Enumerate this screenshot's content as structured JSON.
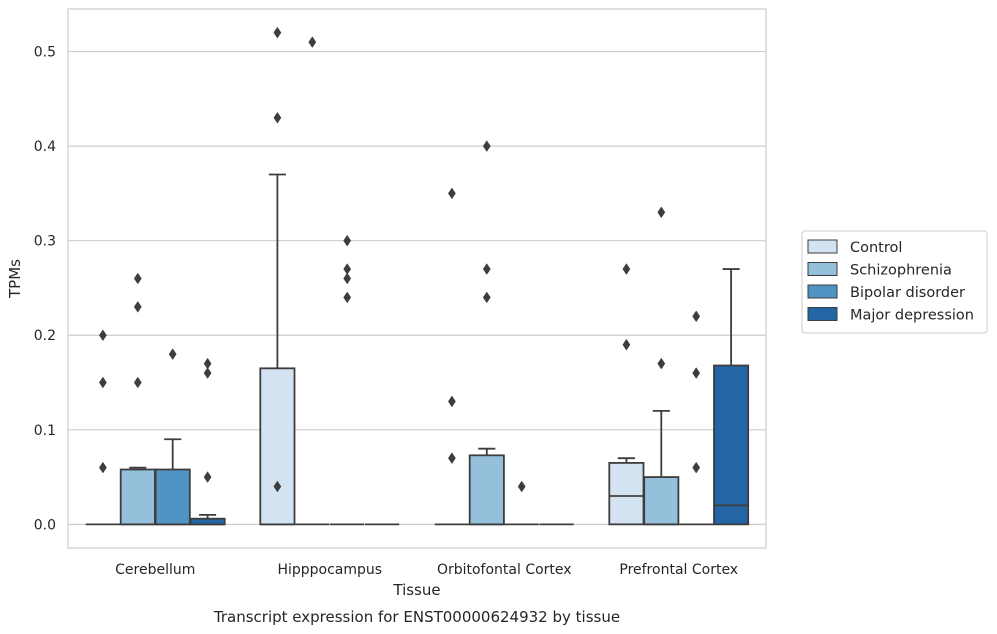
{
  "chart_data": {
    "type": "box",
    "title": "",
    "caption": "Transcript expression for ENST00000624932 by tissue",
    "xlabel": "Tissue",
    "ylabel": "TPMs",
    "ylim": [
      -0.025,
      0.545
    ],
    "yticks": [
      0.0,
      0.1,
      0.2,
      0.3,
      0.4,
      0.5
    ],
    "ytick_labels": [
      "0.0",
      "0.1",
      "0.2",
      "0.3",
      "0.4",
      "0.5"
    ],
    "grid": true,
    "legend_position": "right",
    "categories": [
      "Cerebellum",
      "Hipppocampus",
      "Orbitofontal Cortex",
      "Prefrontal Cortex"
    ],
    "series": [
      {
        "name": "Control",
        "color": "#d4e3f1",
        "boxes": [
          {
            "q1": 0,
            "median": 0,
            "q3": 0,
            "whisker_low": 0,
            "whisker_high": 0,
            "outliers": [
              0.06,
              0.15,
              0.2
            ]
          },
          {
            "q1": 0,
            "median": 0,
            "q3": 0.165,
            "whisker_low": 0,
            "whisker_high": 0.37,
            "outliers": [
              0.04,
              0.43,
              0.52
            ]
          },
          {
            "q1": 0,
            "median": 0,
            "q3": 0,
            "whisker_low": 0,
            "whisker_high": 0,
            "outliers": [
              0.07,
              0.13,
              0.35
            ]
          },
          {
            "q1": 0,
            "median": 0.03,
            "q3": 0.065,
            "whisker_low": 0,
            "whisker_high": 0.07,
            "outliers": [
              0.19,
              0.27
            ]
          }
        ]
      },
      {
        "name": "Schizophrenia",
        "color": "#94c0dc",
        "boxes": [
          {
            "q1": 0,
            "median": 0,
            "q3": 0.058,
            "whisker_low": 0,
            "whisker_high": 0.06,
            "outliers": [
              0.15,
              0.23,
              0.26
            ]
          },
          {
            "q1": 0,
            "median": 0,
            "q3": 0,
            "whisker_low": 0,
            "whisker_high": 0,
            "outliers": [
              0.51
            ]
          },
          {
            "q1": 0,
            "median": 0,
            "q3": 0.073,
            "whisker_low": 0,
            "whisker_high": 0.08,
            "outliers": [
              0.24,
              0.27,
              0.4
            ]
          },
          {
            "q1": 0,
            "median": 0,
            "q3": 0.05,
            "whisker_low": 0,
            "whisker_high": 0.12,
            "outliers": [
              0.17,
              0.33
            ]
          }
        ]
      },
      {
        "name": "Bipolar disorder",
        "color": "#5094c3",
        "boxes": [
          {
            "q1": 0,
            "median": 0,
            "q3": 0.058,
            "whisker_low": 0,
            "whisker_high": 0.09,
            "outliers": [
              0.18
            ]
          },
          {
            "q1": 0,
            "median": 0,
            "q3": 0,
            "whisker_low": 0,
            "whisker_high": 0,
            "outliers": [
              0.24,
              0.26,
              0.27,
              0.3
            ]
          },
          {
            "q1": 0,
            "median": 0,
            "q3": 0,
            "whisker_low": 0,
            "whisker_high": 0,
            "outliers": [
              0.04
            ]
          },
          {
            "q1": 0,
            "median": 0,
            "q3": 0,
            "whisker_low": 0,
            "whisker_high": 0,
            "outliers": [
              0.06,
              0.16,
              0.22
            ]
          }
        ]
      },
      {
        "name": "Major depression",
        "color": "#2266a6",
        "boxes": [
          {
            "q1": 0,
            "median": 0,
            "q3": 0.006,
            "whisker_low": 0,
            "whisker_high": 0.01,
            "outliers": [
              0.05,
              0.16,
              0.17
            ]
          },
          {
            "q1": 0,
            "median": 0,
            "q3": 0,
            "whisker_low": 0,
            "whisker_high": 0,
            "outliers": []
          },
          {
            "q1": 0,
            "median": 0,
            "q3": 0,
            "whisker_low": 0,
            "whisker_high": 0,
            "outliers": []
          },
          {
            "q1": 0,
            "median": 0.02,
            "q3": 0.168,
            "whisker_low": 0,
            "whisker_high": 0.27,
            "outliers": []
          }
        ]
      }
    ]
  }
}
